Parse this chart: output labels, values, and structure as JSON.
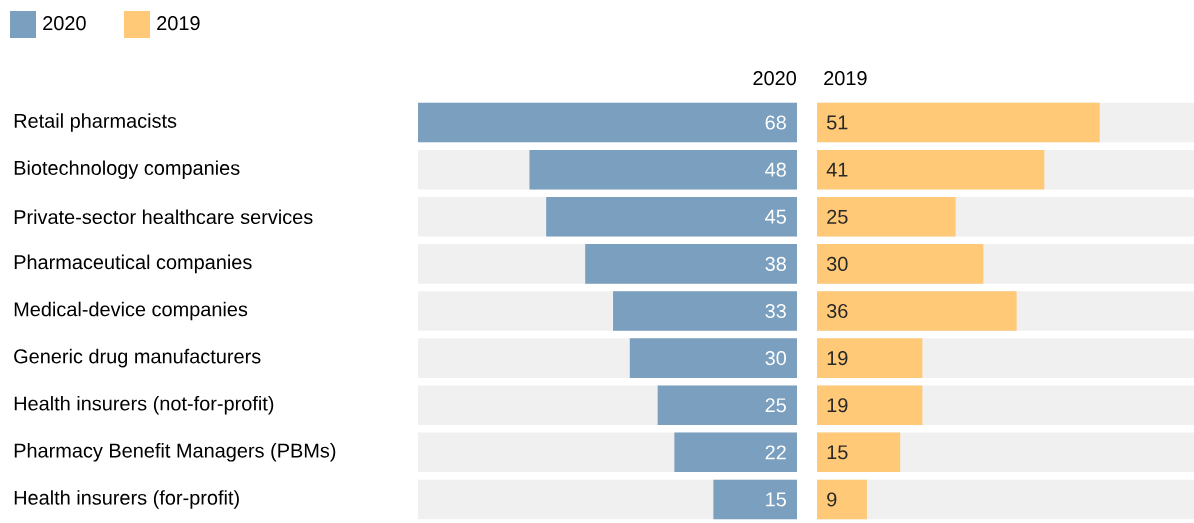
{
  "chart_data": [
    {
      "type": "bar",
      "orientation": "horizontal",
      "title": "2020",
      "categories": [
        "Retail pharmacists",
        "Biotechnology companies",
        "Private-sector healthcare services",
        "Pharmaceutical companies",
        "Medical-device companies",
        "Generic drug manufacturers",
        "Health insurers (not-for-profit)",
        "Pharmacy Benefit Managers (PBMs)",
        "Health insurers (for-profit)"
      ],
      "series": [
        {
          "name": "2020",
          "color": "#7a9fbf",
          "values": [
            68,
            48,
            45,
            38,
            33,
            30,
            25,
            22,
            15
          ]
        }
      ],
      "xlim": [
        68,
        0
      ],
      "data_labels": true,
      "legend": "top left",
      "tick_labels": "y"
    },
    {
      "type": "bar",
      "orientation": "horizontal",
      "title": "2019",
      "categories": [
        null,
        null,
        null,
        null,
        null,
        null,
        null,
        null,
        null
      ],
      "series": [
        {
          "name": "2019",
          "color": "#ffc977",
          "values": [
            51,
            41,
            25,
            30,
            36,
            19,
            19,
            15,
            9
          ]
        }
      ],
      "xlim": [
        0,
        68
      ],
      "data_labels": true,
      "legend": "top left",
      "tick_labels": false
    }
  ]
}
